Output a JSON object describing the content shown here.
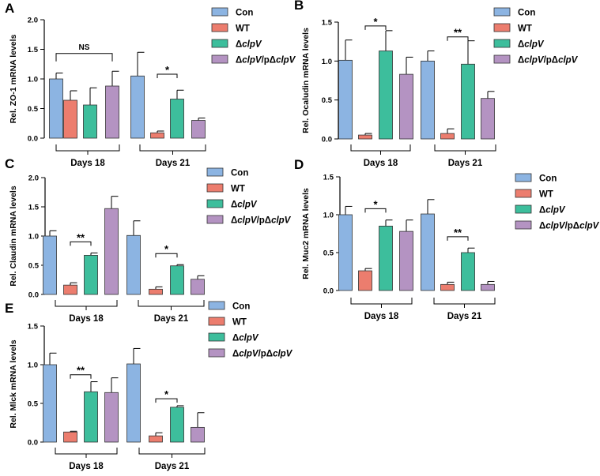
{
  "figure": {
    "legend_entries": [
      {
        "key": "con",
        "prefix": "Con",
        "italic": "",
        "mid": "",
        "italic2": "",
        "color": "#8CB4E2"
      },
      {
        "key": "wt",
        "prefix": "WT",
        "italic": "",
        "mid": "",
        "italic2": "",
        "color": "#EC7D6E"
      },
      {
        "key": "dclpv",
        "prefix": "Δ",
        "italic": "clpV",
        "mid": "",
        "italic2": "",
        "color": "#3DBE9C"
      },
      {
        "key": "comp",
        "prefix": "Δ",
        "italic": "clpV",
        "mid": "/pΔ",
        "italic2": "clpV",
        "color": "#B493C2"
      }
    ],
    "bar_edge_color": "#333333"
  },
  "chart_data": [
    {
      "panel": "A",
      "type": "bar",
      "ylabel": "Rel. ZO-1 mRNA levels",
      "ylim": [
        0,
        2.0
      ],
      "yticks": [
        "0.0",
        "0.5",
        "1.0",
        "1.5",
        "2.0"
      ],
      "groups": [
        {
          "label": "Days 18",
          "values": [
            1.0,
            0.64,
            0.56,
            0.88
          ],
          "errors": [
            0.1,
            0.16,
            0.29,
            0.25
          ]
        },
        {
          "label": "Days 21",
          "values": [
            1.05,
            0.09,
            0.66,
            0.3
          ],
          "errors": [
            0.4,
            0.03,
            0.15,
            0.04
          ]
        }
      ],
      "annotations": [
        {
          "text": "NS",
          "group": 0,
          "from": 0,
          "to": 3,
          "level": 1.43
        },
        {
          "text": "*",
          "group": 1,
          "from": 1,
          "to": 2,
          "level": 1.08
        }
      ]
    },
    {
      "panel": "B",
      "type": "bar",
      "ylabel": "Rel. Ocaludin mRNA levels",
      "ylim": [
        0,
        1.5
      ],
      "yticks": [
        "0.0",
        "0.5",
        "1.0",
        "1.5"
      ],
      "groups": [
        {
          "label": "Days 18",
          "values": [
            1.01,
            0.05,
            1.13,
            0.83
          ],
          "errors": [
            0.26,
            0.02,
            0.26,
            0.22
          ]
        },
        {
          "label": "Days 21",
          "values": [
            1.0,
            0.07,
            0.96,
            0.52
          ],
          "errors": [
            0.13,
            0.06,
            0.3,
            0.09
          ]
        }
      ],
      "annotations": [
        {
          "text": "*",
          "group": 0,
          "from": 1,
          "to": 2,
          "level": 1.45
        },
        {
          "text": "**",
          "group": 1,
          "from": 1,
          "to": 2,
          "level": 1.31
        }
      ]
    },
    {
      "panel": "C",
      "type": "bar",
      "ylabel": "Rel. Claudin mRNA levels",
      "ylim": [
        0,
        2.0
      ],
      "yticks": [
        "0.0",
        "0.5",
        "1.0",
        "1.5",
        "2.0"
      ],
      "groups": [
        {
          "label": "Days 18",
          "values": [
            1.0,
            0.16,
            0.67,
            1.47
          ],
          "errors": [
            0.09,
            0.04,
            0.04,
            0.21
          ]
        },
        {
          "label": "Days 21",
          "values": [
            1.01,
            0.09,
            0.49,
            0.26
          ],
          "errors": [
            0.25,
            0.04,
            0.02,
            0.06
          ]
        }
      ],
      "annotations": [
        {
          "text": "**",
          "group": 0,
          "from": 1,
          "to": 2,
          "level": 0.9
        },
        {
          "text": "*",
          "group": 1,
          "from": 1,
          "to": 2,
          "level": 0.7
        }
      ]
    },
    {
      "panel": "D",
      "type": "bar",
      "ylabel": "Rel. Muc2 mRNA levels",
      "ylim": [
        0,
        1.5
      ],
      "yticks": [
        "0.0",
        "0.5",
        "1.0",
        "1.5"
      ],
      "groups": [
        {
          "label": "Days 18",
          "values": [
            1.0,
            0.26,
            0.85,
            0.78
          ],
          "errors": [
            0.11,
            0.03,
            0.08,
            0.15
          ]
        },
        {
          "label": "Days 21",
          "values": [
            1.01,
            0.08,
            0.5,
            0.08
          ],
          "errors": [
            0.19,
            0.03,
            0.06,
            0.04
          ]
        }
      ],
      "annotations": [
        {
          "text": "*",
          "group": 0,
          "from": 1,
          "to": 2,
          "level": 1.08
        },
        {
          "text": "**",
          "group": 1,
          "from": 1,
          "to": 2,
          "level": 0.71
        }
      ]
    },
    {
      "panel": "E",
      "type": "bar",
      "ylabel": "Rel. Mlck mRNA levels",
      "ylim": [
        0,
        1.5
      ],
      "yticks": [
        "0.0",
        "0.5",
        "1.0",
        "1.5"
      ],
      "groups": [
        {
          "label": "Days 18",
          "values": [
            1.0,
            0.13,
            0.65,
            0.64
          ],
          "errors": [
            0.15,
            0.01,
            0.13,
            0.19
          ]
        },
        {
          "label": "Days 21",
          "values": [
            1.01,
            0.08,
            0.45,
            0.19
          ],
          "errors": [
            0.2,
            0.04,
            0.02,
            0.19
          ]
        }
      ],
      "annotations": [
        {
          "text": "**",
          "group": 0,
          "from": 1,
          "to": 2,
          "level": 0.87
        },
        {
          "text": "*",
          "group": 1,
          "from": 1,
          "to": 2,
          "level": 0.56
        }
      ]
    }
  ]
}
